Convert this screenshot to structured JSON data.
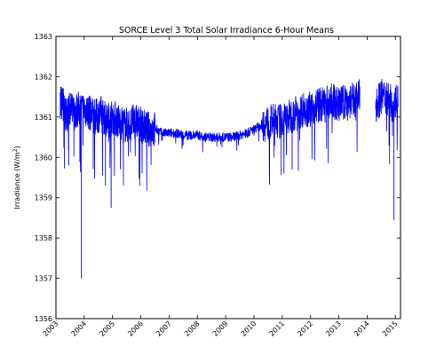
{
  "chart_data": {
    "type": "line",
    "title": "SORCE Level 3 Total Solar Irradiance 6-Hour Means",
    "ylabel_main": "Irradiance (W/m",
    "ylabel_sup": "2",
    "ylabel_tail": ")",
    "xlabel": "",
    "xlim": [
      2003.0,
      2015.18
    ],
    "ylim": [
      1356,
      1363
    ],
    "yticks": [
      1356,
      1357,
      1358,
      1359,
      1360,
      1361,
      1362,
      1363
    ],
    "xticks": [
      2003,
      2004,
      2005,
      2006,
      2007,
      2008,
      2009,
      2010,
      2011,
      2012,
      2013,
      2014,
      2015
    ],
    "grid": false,
    "line_color": "#0000ff",
    "series": [
      {
        "x": [
          2003.15,
          2003.25,
          2003.35,
          2003.5,
          2003.65,
          2003.8,
          2004.0,
          2004.2,
          2004.4,
          2004.6,
          2004.8,
          2005.0,
          2005.2,
          2005.4,
          2005.6,
          2005.8,
          2006.0,
          2006.25,
          2006.5,
          2006.75,
          2007.0,
          2007.25,
          2007.5,
          2007.75,
          2008.0,
          2008.25,
          2008.5,
          2008.75,
          2009.0,
          2009.25,
          2009.5,
          2009.75,
          2010.0,
          2010.25,
          2010.5,
          2010.75,
          2011.0,
          2011.25,
          2011.5,
          2011.75,
          2012.0,
          2012.25,
          2012.5,
          2012.75,
          2013.0,
          2013.25,
          2013.5,
          2013.75,
          2014.0,
          2014.3,
          2014.5,
          2014.7,
          2014.9,
          2015.1
        ],
        "y": [
          1361.4,
          1361.3,
          1361.0,
          1361.2,
          1361.1,
          1361.2,
          1361.2,
          1361.1,
          1361.0,
          1361.1,
          1360.9,
          1361.0,
          1360.9,
          1360.8,
          1360.8,
          1360.9,
          1360.8,
          1360.7,
          1360.7,
          1360.6,
          1360.6,
          1360.6,
          1360.55,
          1360.55,
          1360.55,
          1360.5,
          1360.5,
          1360.5,
          1360.5,
          1360.5,
          1360.55,
          1360.6,
          1360.7,
          1360.8,
          1360.85,
          1360.9,
          1360.9,
          1361.0,
          1361.1,
          1361.2,
          1361.2,
          1361.3,
          1361.3,
          1361.4,
          1361.3,
          1361.4,
          1361.4,
          1361.5,
          null,
          1361.3,
          1361.5,
          1361.5,
          1361.3,
          1361.5
        ]
      }
    ]
  }
}
